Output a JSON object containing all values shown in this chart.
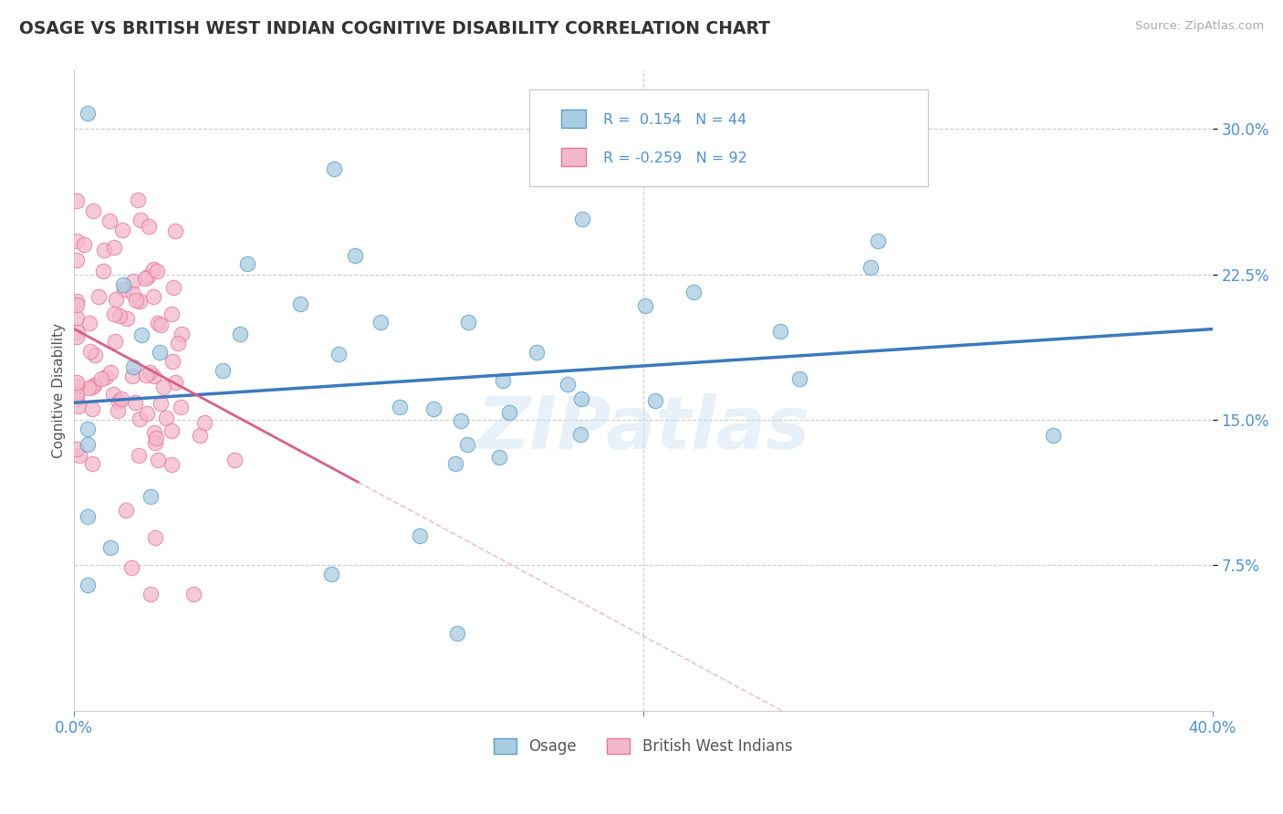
{
  "title": "OSAGE VS BRITISH WEST INDIAN COGNITIVE DISABILITY CORRELATION CHART",
  "source": "Source: ZipAtlas.com",
  "ylabel": "Cognitive Disability",
  "ytick_labels": [
    "7.5%",
    "15.0%",
    "22.5%",
    "30.0%"
  ],
  "ytick_values": [
    0.075,
    0.15,
    0.225,
    0.3
  ],
  "xlim": [
    0.0,
    0.4
  ],
  "ylim": [
    0.0,
    0.33
  ],
  "xtick_labels": [
    "0.0%",
    "40.0%"
  ],
  "xtick_values": [
    0.0,
    0.4
  ],
  "legend_label1": "Osage",
  "legend_label2": "British West Indians",
  "R1": 0.154,
  "N1": 44,
  "R2": -0.259,
  "N2": 92,
  "color_blue": "#a8cce0",
  "color_pink": "#f4b8cb",
  "color_blue_edge": "#5b9ec9",
  "color_pink_edge": "#e8779a",
  "color_blue_line": "#3a7abf",
  "color_pink_line": "#d95f8a",
  "watermark": "ZIPatlas",
  "background_color": "#ffffff",
  "grid_color": "#cccccc",
  "title_color": "#333333",
  "legend_text_color": "#4a90d9",
  "axis_label_color": "#4a90d9",
  "ytick_label_color": "#4a90d9"
}
